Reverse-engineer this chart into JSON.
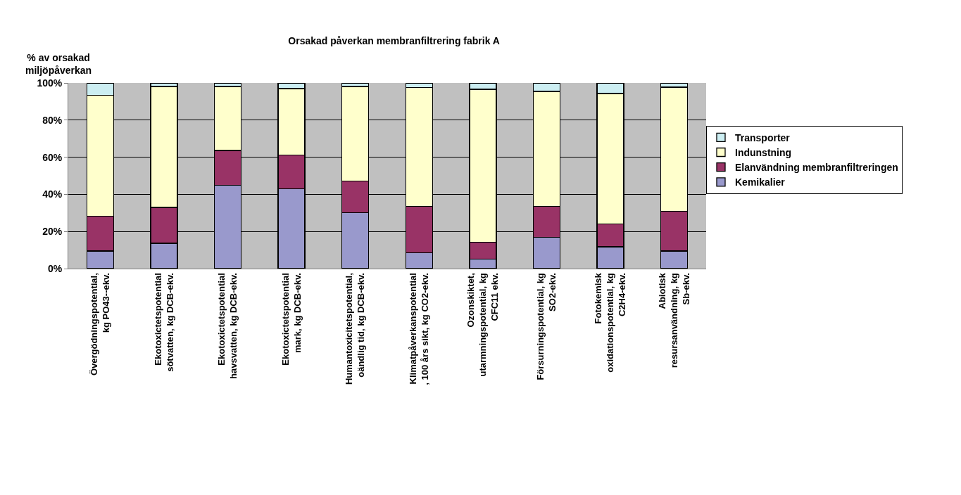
{
  "chart_data": {
    "type": "bar",
    "stacked": true,
    "title": "Orsakad påverkan membranfiltrering fabrik A",
    "ylabel": "% av orsakad\nmiljöpåverkan",
    "categories": [
      "Övergödningspotential,\nkg PO43--ekv.",
      "Ekotoxictetspotential\nsötvatten, kg DCB-ekv.",
      "Ekotoxictetspotential\nhavsvatten, kg DCB-ekv.",
      "Ekotoxictetspotential\nmark, kg DCB-ekv.",
      "Humantoxicitetspotential,\noändlig tid, kg DCB-ekv.",
      "Klimatpåverkanspotential\n, 100 års sikt, kg CO2-ekv.",
      "Ozonskiktet,\nutarmningspotential, kg\nCFC11 ekv.",
      "Försurningspotential, kg\nSO2-ekv.",
      "Fotokemisk\noxidationspotential, kg\nC2H4-ekv.",
      "Abiotisk\nresursanvändning, kg\nSb-ekv."
    ],
    "series": [
      {
        "name": "Kemikalier",
        "color": "#9999cc",
        "values": [
          9.5,
          13.6,
          44.8,
          43.0,
          30.1,
          8.5,
          5.1,
          16.9,
          11.8,
          9.5
        ]
      },
      {
        "name": "Elanvändning membranfiltreringen",
        "color": "#993366",
        "values": [
          18.8,
          19.4,
          18.8,
          18.2,
          17.1,
          25.1,
          9.1,
          16.7,
          12.2,
          21.3
        ]
      },
      {
        "name": "Indunstning",
        "color": "#ffffcc",
        "values": [
          65.2,
          65.1,
          34.5,
          35.8,
          50.9,
          64.0,
          82.4,
          61.8,
          70.3,
          66.9
        ]
      },
      {
        "name": "Transporter",
        "color": "#cceef2",
        "values": [
          6.5,
          1.9,
          1.9,
          3.0,
          1.9,
          2.4,
          3.4,
          4.6,
          5.7,
          2.3
        ]
      }
    ],
    "ylim": [
      0,
      100
    ],
    "yticks": [
      {
        "value": 0,
        "label": "0%"
      },
      {
        "value": 20,
        "label": "20%"
      },
      {
        "value": 40,
        "label": "40%"
      },
      {
        "value": 60,
        "label": "60%"
      },
      {
        "value": 80,
        "label": "80%"
      },
      {
        "value": 100,
        "label": "100%"
      }
    ],
    "grid": "y",
    "legend": "right"
  }
}
